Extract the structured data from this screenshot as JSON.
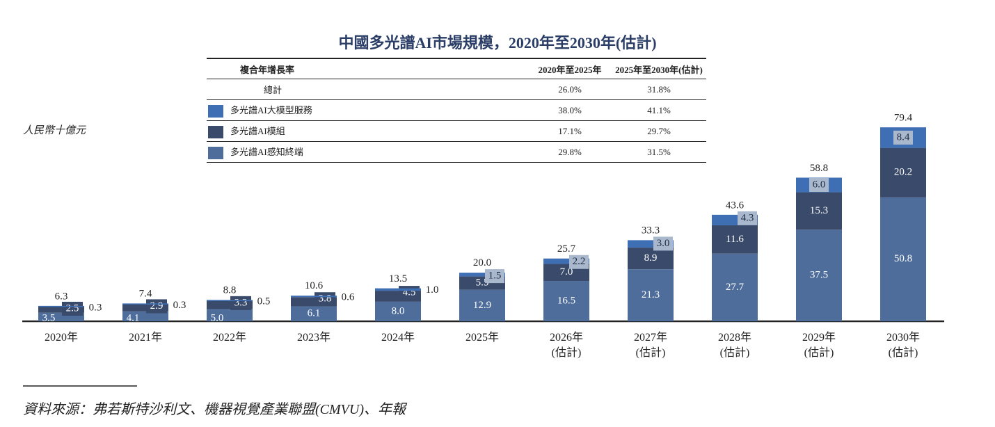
{
  "chart_data": {
    "type": "stacked_bar",
    "title": "中國多光譜AI市場規模，2020年至2030年(估計)",
    "y_label": "人民幣十億元",
    "source": "資料來源：弗若斯特沙利文、機器視覺產業聯盟(CMVU)、年報",
    "table_header": [
      "複合年增長率",
      "2020年至2025年",
      "2025年至2030年(估計)"
    ],
    "total_row": {
      "label": "總計",
      "cagr": [
        "26.0%",
        "31.8%"
      ]
    },
    "categories": [
      "2020年",
      "2021年",
      "2022年",
      "2023年",
      "2024年",
      "2025年",
      "2026年\n(估計)",
      "2027年\n(估計)",
      "2028年\n(估計)",
      "2029年\n(估計)",
      "2030年\n(估計)"
    ],
    "series": [
      {
        "name": "多光譜AI感知終端",
        "color": "#4e6d9b",
        "cagr": [
          "29.8%",
          "31.5%"
        ],
        "values": [
          3.5,
          4.1,
          5.0,
          6.1,
          8.0,
          12.9,
          16.5,
          21.3,
          27.7,
          37.5,
          50.8
        ],
        "value_labels": [
          "3.5",
          "4.1",
          "5.0",
          "6.1",
          "8.0",
          "12.9",
          "16.5",
          "21.3",
          "27.7",
          "37.5",
          "50.8"
        ]
      },
      {
        "name": "多光譜AI模組",
        "color": "#3a4a6a",
        "cagr": [
          "17.1%",
          "29.7%"
        ],
        "values": [
          2.5,
          2.9,
          3.3,
          3.8,
          4.5,
          5.5,
          7.0,
          8.9,
          11.6,
          15.3,
          20.2
        ],
        "value_labels": [
          "2.5",
          "2.9",
          "3.3",
          "3.8",
          "4.5",
          "5.5",
          "7.0",
          "8.9",
          "11.6",
          "15.3",
          "20.2"
        ]
      },
      {
        "name": "多光譜AI大模型服務",
        "color": "#3e6fb4",
        "cagr": [
          "38.0%",
          "41.1%"
        ],
        "values": [
          0.3,
          0.3,
          0.5,
          0.6,
          1.0,
          1.5,
          2.2,
          3.0,
          4.3,
          6.0,
          8.4
        ],
        "value_labels": [
          "0.3",
          "0.3",
          "0.5",
          "0.6",
          "1.0",
          "1.5",
          "2.2",
          "3.0",
          "4.3",
          "6.0",
          "8.4"
        ]
      }
    ],
    "totals": [
      6.3,
      7.4,
      8.8,
      10.6,
      13.5,
      20.0,
      25.7,
      33.3,
      43.6,
      58.8,
      79.4
    ],
    "total_labels": [
      "6.3",
      "7.4",
      "8.8",
      "10.6",
      "13.5",
      "20.0",
      "25.7",
      "33.3",
      "43.6",
      "58.8",
      "79.4"
    ],
    "ylim": [
      0,
      80
    ]
  }
}
